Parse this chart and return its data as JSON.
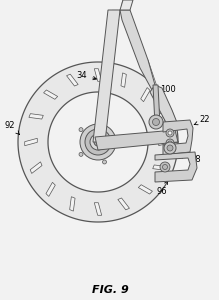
{
  "bg_color": "#f2f2f2",
  "line_color": "#555555",
  "fig_label": "FIG. 9",
  "figsize": [
    2.19,
    3.0
  ],
  "dpi": 100
}
